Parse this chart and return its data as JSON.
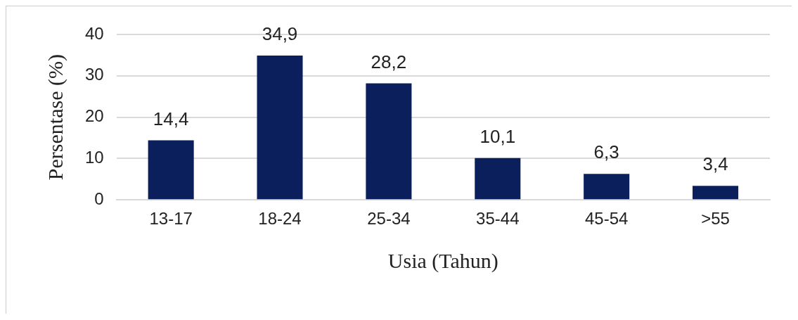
{
  "chart_data": {
    "type": "bar",
    "xlabel": "Usia (Tahun)",
    "ylabel": "Persentase (%)",
    "categories": [
      "13-17",
      "18-24",
      "25-34",
      "35-44",
      "45-54",
      ">55"
    ],
    "values": [
      14.4,
      34.9,
      28.2,
      10.1,
      6.3,
      3.4
    ],
    "value_labels": [
      "14,4",
      "34,9",
      "28,2",
      "10,1",
      "6,3",
      "3,4"
    ],
    "color": "#0b1f5c",
    "ylim": [
      0,
      40
    ],
    "yticks": [
      0,
      10,
      20,
      30,
      40
    ],
    "grid": "y",
    "legend": false
  }
}
